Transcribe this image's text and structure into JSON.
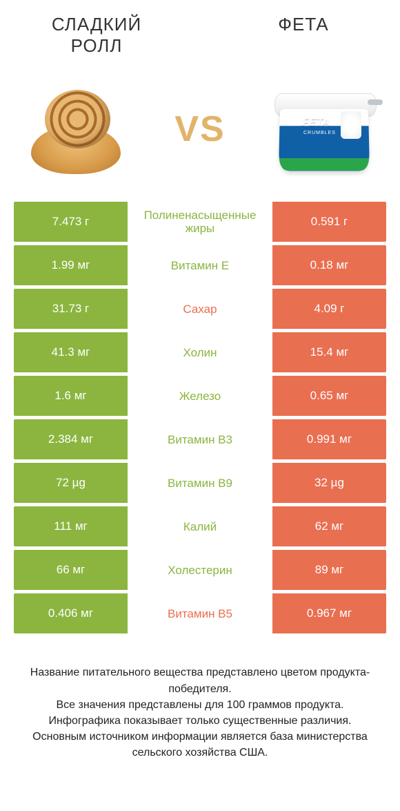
{
  "colors": {
    "green": "#8bb53f",
    "orange": "#e96f51",
    "vs": "#e2b36a",
    "text": "#333333"
  },
  "header": {
    "left_title": "СЛАДКИЙ РОЛЛ",
    "right_title": "ФЕТА",
    "vs_label": "VS"
  },
  "feta_pack": {
    "brand": "FETA",
    "sub": "CRUMBLES"
  },
  "rows": [
    {
      "left": "7.473 г",
      "nutrient": "Полиненасыщенные жиры",
      "right": "0.591 г",
      "winner": "left"
    },
    {
      "left": "1.99 мг",
      "nutrient": "Витамин E",
      "right": "0.18 мг",
      "winner": "left"
    },
    {
      "left": "31.73 г",
      "nutrient": "Сахар",
      "right": "4.09 г",
      "winner": "right"
    },
    {
      "left": "41.3 мг",
      "nutrient": "Холин",
      "right": "15.4 мг",
      "winner": "left"
    },
    {
      "left": "1.6 мг",
      "nutrient": "Железо",
      "right": "0.65 мг",
      "winner": "left"
    },
    {
      "left": "2.384 мг",
      "nutrient": "Витамин B3",
      "right": "0.991 мг",
      "winner": "left"
    },
    {
      "left": "72 µg",
      "nutrient": "Витамин B9",
      "right": "32 µg",
      "winner": "left"
    },
    {
      "left": "111 мг",
      "nutrient": "Калий",
      "right": "62 мг",
      "winner": "left"
    },
    {
      "left": "66 мг",
      "nutrient": "Холестерин",
      "right": "89 мг",
      "winner": "left"
    },
    {
      "left": "0.406 мг",
      "nutrient": "Витамин B5",
      "right": "0.967 мг",
      "winner": "right"
    }
  ],
  "footer": {
    "line1": "Название питательного вещества представлено цветом продукта-победителя.",
    "line2": "Все значения представлены для 100 граммов продукта.",
    "line3": "Инфографика показывает только существенные различия.",
    "line4": "Основным источником информации является база министерства сельского хозяйства США."
  }
}
